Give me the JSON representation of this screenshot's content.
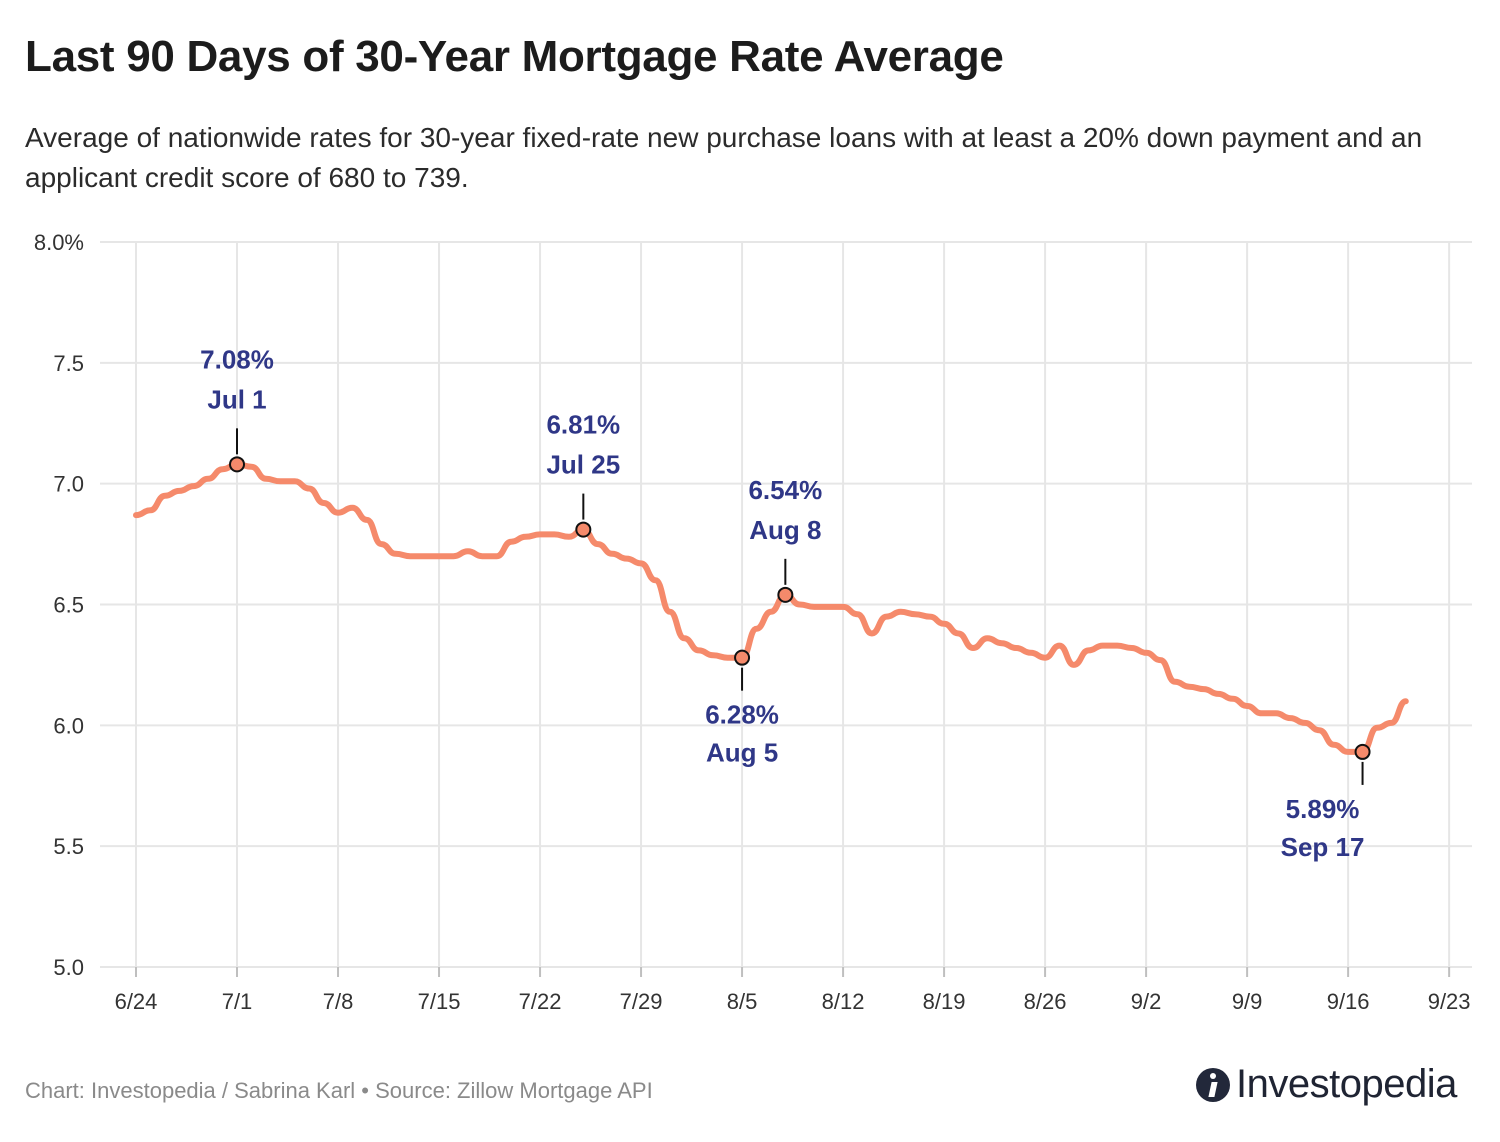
{
  "title": "Last 90 Days of 30-Year Mortgage Rate Average",
  "subtitle": "Average of nationwide rates for 30-year fixed-rate new purchase loans with at least a 20% down payment and an applicant credit score of 680 to 739.",
  "footer": "Chart: Investopedia / Sabrina Karl • Source: Zillow Mortgage API",
  "logo": "Investopedia",
  "colors": {
    "line": "#f58a6b",
    "annotation": "#2f3787",
    "grid": "#e6e6e6"
  },
  "chart_data": {
    "type": "line",
    "title": "Last 90 Days of 30-Year Mortgage Rate Average",
    "xlabel": "",
    "ylabel": "",
    "ylim": [
      5.0,
      8.0
    ],
    "yticks": [
      "8.0%",
      "7.5",
      "7.0",
      "6.5",
      "6.0",
      "5.5",
      "5.0"
    ],
    "xticks": [
      "6/24",
      "7/1",
      "7/8",
      "7/15",
      "7/22",
      "7/29",
      "8/5",
      "8/12",
      "8/19",
      "8/26",
      "9/2",
      "9/9",
      "9/16",
      "9/23"
    ],
    "x_axis_start": "2024-06-24",
    "grid": true,
    "legend": "none",
    "series": [
      {
        "values": [
          {
            "x": "6/24",
            "y": 6.87
          },
          {
            "x": "6/25",
            "y": 6.89
          },
          {
            "x": "6/26",
            "y": 6.95
          },
          {
            "x": "6/27",
            "y": 6.97
          },
          {
            "x": "6/28",
            "y": 6.99
          },
          {
            "x": "6/29",
            "y": 7.02
          },
          {
            "x": "6/30",
            "y": 7.06
          },
          {
            "x": "7/1",
            "y": 7.08
          },
          {
            "x": "7/2",
            "y": 7.07
          },
          {
            "x": "7/3",
            "y": 7.02
          },
          {
            "x": "7/4",
            "y": 7.01
          },
          {
            "x": "7/5",
            "y": 7.01
          },
          {
            "x": "7/6",
            "y": 6.98
          },
          {
            "x": "7/7",
            "y": 6.92
          },
          {
            "x": "7/8",
            "y": 6.88
          },
          {
            "x": "7/9",
            "y": 6.9
          },
          {
            "x": "7/10",
            "y": 6.85
          },
          {
            "x": "7/11",
            "y": 6.75
          },
          {
            "x": "7/12",
            "y": 6.71
          },
          {
            "x": "7/13",
            "y": 6.7
          },
          {
            "x": "7/14",
            "y": 6.7
          },
          {
            "x": "7/15",
            "y": 6.7
          },
          {
            "x": "7/16",
            "y": 6.7
          },
          {
            "x": "7/17",
            "y": 6.72
          },
          {
            "x": "7/18",
            "y": 6.7
          },
          {
            "x": "7/19",
            "y": 6.7
          },
          {
            "x": "7/20",
            "y": 6.76
          },
          {
            "x": "7/21",
            "y": 6.78
          },
          {
            "x": "7/22",
            "y": 6.79
          },
          {
            "x": "7/23",
            "y": 6.79
          },
          {
            "x": "7/24",
            "y": 6.78
          },
          {
            "x": "7/25",
            "y": 6.81
          },
          {
            "x": "7/26",
            "y": 6.75
          },
          {
            "x": "7/27",
            "y": 6.71
          },
          {
            "x": "7/28",
            "y": 6.69
          },
          {
            "x": "7/29",
            "y": 6.67
          },
          {
            "x": "7/30",
            "y": 6.6
          },
          {
            "x": "7/31",
            "y": 6.47
          },
          {
            "x": "8/1",
            "y": 6.36
          },
          {
            "x": "8/2",
            "y": 6.31
          },
          {
            "x": "8/3",
            "y": 6.29
          },
          {
            "x": "8/4",
            "y": 6.28
          },
          {
            "x": "8/5",
            "y": 6.28
          },
          {
            "x": "8/6",
            "y": 6.4
          },
          {
            "x": "8/7",
            "y": 6.47
          },
          {
            "x": "8/8",
            "y": 6.54
          },
          {
            "x": "8/9",
            "y": 6.5
          },
          {
            "x": "8/10",
            "y": 6.49
          },
          {
            "x": "8/11",
            "y": 6.49
          },
          {
            "x": "8/12",
            "y": 6.49
          },
          {
            "x": "8/13",
            "y": 6.46
          },
          {
            "x": "8/14",
            "y": 6.38
          },
          {
            "x": "8/15",
            "y": 6.45
          },
          {
            "x": "8/16",
            "y": 6.47
          },
          {
            "x": "8/17",
            "y": 6.46
          },
          {
            "x": "8/18",
            "y": 6.45
          },
          {
            "x": "8/19",
            "y": 6.42
          },
          {
            "x": "8/20",
            "y": 6.38
          },
          {
            "x": "8/21",
            "y": 6.32
          },
          {
            "x": "8/22",
            "y": 6.36
          },
          {
            "x": "8/23",
            "y": 6.34
          },
          {
            "x": "8/24",
            "y": 6.32
          },
          {
            "x": "8/25",
            "y": 6.3
          },
          {
            "x": "8/26",
            "y": 6.28
          },
          {
            "x": "8/27",
            "y": 6.33
          },
          {
            "x": "8/28",
            "y": 6.25
          },
          {
            "x": "8/29",
            "y": 6.31
          },
          {
            "x": "8/30",
            "y": 6.33
          },
          {
            "x": "8/31",
            "y": 6.33
          },
          {
            "x": "9/1",
            "y": 6.32
          },
          {
            "x": "9/2",
            "y": 6.3
          },
          {
            "x": "9/3",
            "y": 6.27
          },
          {
            "x": "9/4",
            "y": 6.18
          },
          {
            "x": "9/5",
            "y": 6.16
          },
          {
            "x": "9/6",
            "y": 6.15
          },
          {
            "x": "9/7",
            "y": 6.13
          },
          {
            "x": "9/8",
            "y": 6.11
          },
          {
            "x": "9/9",
            "y": 6.08
          },
          {
            "x": "9/10",
            "y": 6.05
          },
          {
            "x": "9/11",
            "y": 6.05
          },
          {
            "x": "9/12",
            "y": 6.03
          },
          {
            "x": "9/13",
            "y": 6.01
          },
          {
            "x": "9/14",
            "y": 5.98
          },
          {
            "x": "9/15",
            "y": 5.92
          },
          {
            "x": "9/16",
            "y": 5.89
          },
          {
            "x": "9/17",
            "y": 5.89
          },
          {
            "x": "9/18",
            "y": 5.99
          },
          {
            "x": "9/19",
            "y": 6.01
          },
          {
            "x": "9/20",
            "y": 6.1
          }
        ]
      }
    ],
    "annotations": [
      {
        "value_label": "7.08%",
        "date_label": "Jul 1",
        "x": "7/1",
        "y": 7.08,
        "position": "above"
      },
      {
        "value_label": "6.81%",
        "date_label": "Jul 25",
        "x": "7/25",
        "y": 6.81,
        "position": "above"
      },
      {
        "value_label": "6.54%",
        "date_label": "Aug 8",
        "x": "8/8",
        "y": 6.54,
        "position": "above"
      },
      {
        "value_label": "6.28%",
        "date_label": "Aug 5",
        "x": "8/5",
        "y": 6.28,
        "position": "below"
      },
      {
        "value_label": "5.89%",
        "date_label": "Sep 17",
        "x": "9/17",
        "y": 5.89,
        "position": "below"
      }
    ]
  }
}
